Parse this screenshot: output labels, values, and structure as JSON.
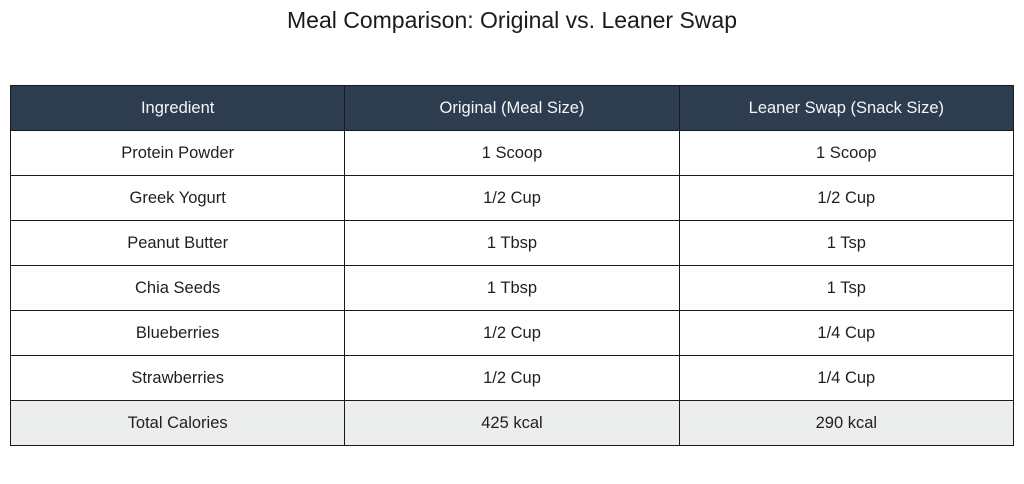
{
  "title": "Meal Comparison: Original vs. Leaner Swap",
  "table": {
    "headers": [
      "Ingredient",
      "Original (Meal Size)",
      "Leaner Swap (Snack Size)"
    ],
    "rows": [
      [
        "Protein Powder",
        "1 Scoop",
        "1 Scoop"
      ],
      [
        "Greek Yogurt",
        "1/2 Cup",
        "1/2 Cup"
      ],
      [
        "Peanut Butter",
        "1 Tbsp",
        "1 Tsp"
      ],
      [
        "Chia Seeds",
        "1 Tbsp",
        "1 Tsp"
      ],
      [
        "Blueberries",
        "1/2 Cup",
        "1/4 Cup"
      ],
      [
        "Strawberries",
        "1/2 Cup",
        "1/4 Cup"
      ]
    ],
    "total": [
      "Total Calories",
      "425 kcal",
      "290 kcal"
    ]
  },
  "colors": {
    "header_bg": "#2e3c4f",
    "header_text": "#f4f6f8",
    "total_row_bg": "#eceeee",
    "border": "#1a1a1a"
  }
}
